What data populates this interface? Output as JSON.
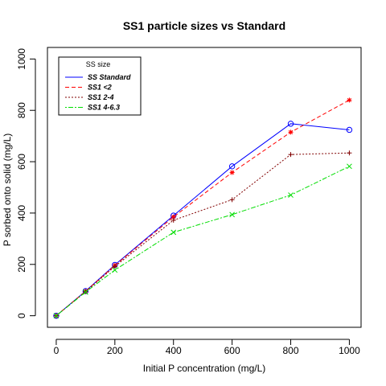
{
  "chart_data": {
    "type": "line",
    "title": "SS1 particle sizes vs Standard",
    "xlabel": "Initial P concentration (mg/L)",
    "ylabel": "P sorbed onto solid (mg/L)",
    "xlim": [
      -30,
      1040
    ],
    "ylim": [
      -45,
      1045
    ],
    "xticks": [
      0,
      200,
      400,
      600,
      800,
      1000
    ],
    "yticks": [
      0,
      200,
      400,
      600,
      800,
      1000
    ],
    "x": [
      0,
      100,
      200,
      400,
      600,
      800,
      1000
    ],
    "legend": {
      "title": "SS size",
      "placement": "top-left"
    },
    "series": [
      {
        "name": "SS Standard",
        "color": "#0000ff",
        "dash": "solid",
        "marker": "circle",
        "values": [
          0,
          96,
          198,
          390,
          582,
          748,
          724
        ]
      },
      {
        "name": "SS1 <2",
        "color": "#ff0000",
        "dash": "dashed",
        "marker": "asterisk",
        "values": [
          0,
          95,
          196,
          385,
          558,
          715,
          840
        ]
      },
      {
        "name": "SS1 2-4",
        "color": "#800000",
        "dash": "dotted",
        "marker": "plus",
        "values": [
          0,
          94,
          192,
          372,
          452,
          628,
          634
        ]
      },
      {
        "name": "SS1 4-6.3",
        "color": "#00dd00",
        "dash": "dotdash",
        "marker": "cross",
        "values": [
          0,
          92,
          178,
          325,
          394,
          470,
          582
        ]
      }
    ]
  }
}
